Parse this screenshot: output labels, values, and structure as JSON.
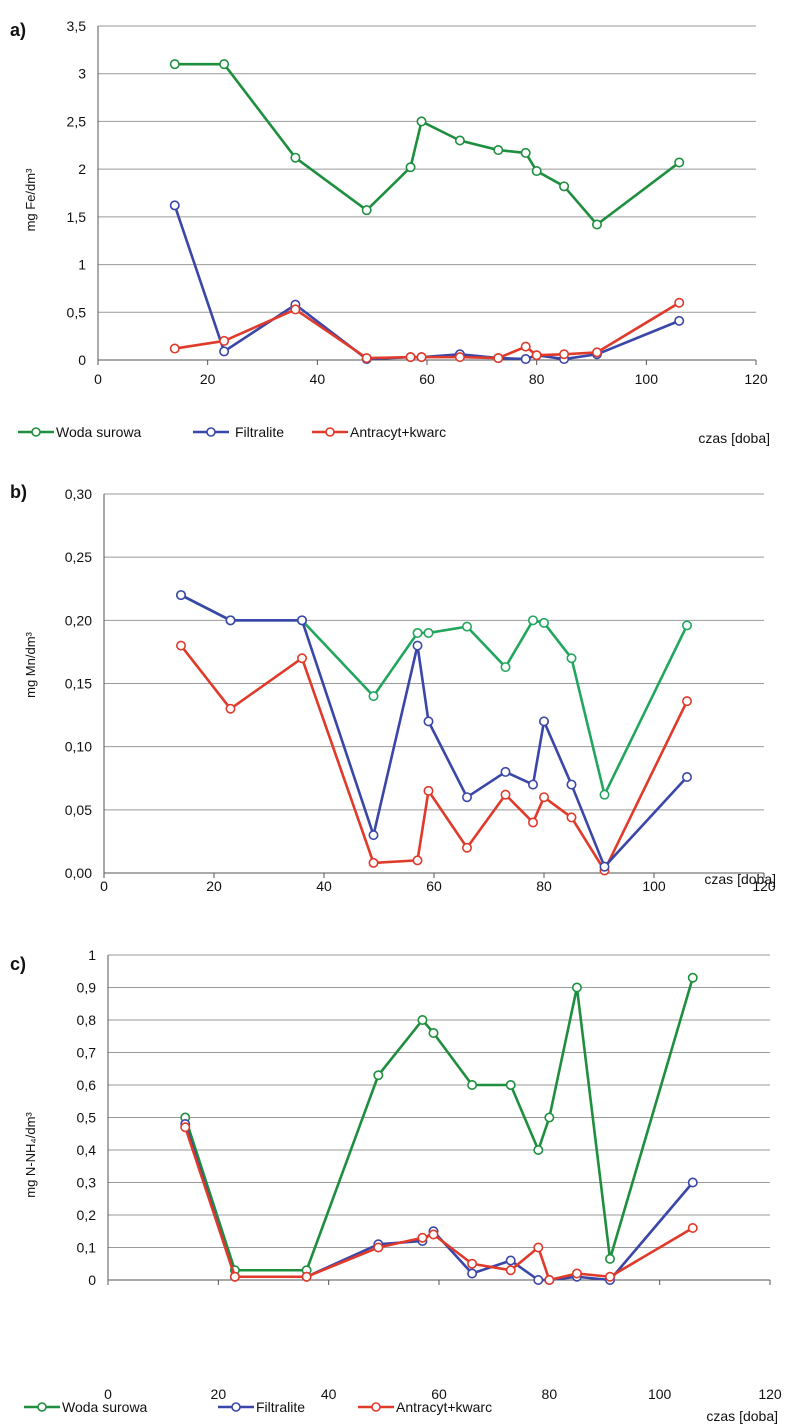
{
  "chart_data": [
    {
      "type": "line",
      "panel_label": "a)",
      "ylabel": "mg Fe/dm³",
      "xlabel": "czas [doba]",
      "xlim": [
        0,
        120
      ],
      "ylim": [
        0,
        3.5
      ],
      "xticks": [
        "0",
        "20",
        "40",
        "60",
        "80",
        "100",
        "120"
      ],
      "yticks": [
        "0",
        "0,5",
        "1",
        "1,5",
        "2",
        "2,5",
        "3",
        "3,5"
      ],
      "grid": true,
      "legend_position": "bottom",
      "series": [
        {
          "name": "Woda surowa",
          "color": "#1e8f3e",
          "x": [
            14,
            23,
            36,
            49,
            57,
            59,
            66,
            73,
            78,
            80,
            85,
            91,
            106
          ],
          "y": [
            3.1,
            3.1,
            2.12,
            1.57,
            2.02,
            2.5,
            2.3,
            2.2,
            2.17,
            1.98,
            1.82,
            1.42,
            2.07
          ]
        },
        {
          "name": "Filtralite",
          "color": "#3a46a8",
          "x": [
            14,
            23,
            36,
            49,
            57,
            59,
            66,
            73,
            78,
            80,
            85,
            91,
            106
          ],
          "y": [
            1.62,
            0.09,
            0.58,
            0.01,
            0.03,
            0.03,
            0.06,
            0.02,
            0.01,
            0.05,
            0.01,
            0.06,
            0.41
          ]
        },
        {
          "name": "Antracyt+kwarc",
          "color": "#e03a2a",
          "x": [
            14,
            23,
            36,
            49,
            57,
            59,
            66,
            73,
            78,
            80,
            85,
            91,
            106
          ],
          "y": [
            0.12,
            0.2,
            0.53,
            0.02,
            0.03,
            0.03,
            0.03,
            0.02,
            0.14,
            0.05,
            0.06,
            0.08,
            0.6
          ]
        }
      ]
    },
    {
      "type": "line",
      "panel_label": "b)",
      "ylabel": "mg Mn/dm³",
      "xlabel": "czas [doba]",
      "xlim": [
        0,
        120
      ],
      "ylim": [
        0,
        0.3
      ],
      "xticks": [
        "0",
        "20",
        "40",
        "60",
        "80",
        "100",
        "120"
      ],
      "yticks": [
        "0,00",
        "0,05",
        "0,10",
        "0,15",
        "0,20",
        "0,25",
        "0,30"
      ],
      "grid": true,
      "legend_position": "bottom",
      "series": [
        {
          "name": "Woda surowa",
          "color": "#22a65e",
          "x": [
            14,
            23,
            36,
            49,
            57,
            59,
            66,
            73,
            78,
            80,
            85,
            91,
            106
          ],
          "y": [
            0.22,
            0.2,
            0.2,
            0.14,
            0.19,
            0.19,
            0.195,
            0.163,
            0.2,
            0.198,
            0.17,
            0.062,
            0.196
          ]
        },
        {
          "name": "Filtralite",
          "color": "#e03a2a",
          "x": [
            14,
            23,
            36,
            49,
            57,
            59,
            66,
            73,
            78,
            80,
            85,
            91,
            106
          ],
          "y": [
            0.18,
            0.13,
            0.17,
            0.008,
            0.01,
            0.065,
            0.02,
            0.062,
            0.04,
            0.06,
            0.044,
            0.002,
            0.136
          ]
        },
        {
          "name": "Antracyt+kwarc",
          "color": "#3a46a8",
          "x": [
            14,
            23,
            36,
            49,
            57,
            59,
            66,
            73,
            78,
            80,
            85,
            91,
            106
          ],
          "y": [
            0.22,
            0.2,
            0.2,
            0.03,
            0.18,
            0.12,
            0.06,
            0.08,
            0.07,
            0.12,
            0.07,
            0.005,
            0.076
          ]
        }
      ]
    },
    {
      "type": "line",
      "panel_label": "c)",
      "ylabel": "mg N-NH₄/dm³",
      "xlabel": "czas [doba]",
      "xlim": [
        0,
        120
      ],
      "ylim": [
        0,
        1
      ],
      "xticks": [
        "0",
        "20",
        "40",
        "60",
        "80",
        "100",
        "120"
      ],
      "yticks": [
        "0",
        "0,1",
        "0,2",
        "0,3",
        "0,4",
        "0,5",
        "0,6",
        "0,7",
        "0,8",
        "0,9",
        "1"
      ],
      "grid": true,
      "legend_position": "bottom",
      "series": [
        {
          "name": "Woda surowa",
          "color": "#1e8f3e",
          "x": [
            14,
            23,
            36,
            49,
            57,
            59,
            66,
            73,
            78,
            80,
            85,
            91,
            106
          ],
          "y": [
            0.5,
            0.03,
            0.03,
            0.63,
            0.8,
            0.76,
            0.6,
            0.6,
            0.4,
            0.5,
            0.9,
            0.065,
            0.93
          ]
        },
        {
          "name": "Filtralite",
          "color": "#3a46a8",
          "x": [
            14,
            23,
            36,
            49,
            57,
            59,
            66,
            73,
            78,
            80,
            85,
            91,
            106
          ],
          "y": [
            0.48,
            0.01,
            0.01,
            0.11,
            0.12,
            0.15,
            0.02,
            0.06,
            0.0,
            0.0,
            0.01,
            0.0,
            0.3
          ]
        },
        {
          "name": "Antracyt+kwarc",
          "color": "#e03a2a",
          "x": [
            14,
            23,
            36,
            49,
            57,
            59,
            66,
            73,
            78,
            80,
            85,
            91,
            106
          ],
          "y": [
            0.47,
            0.01,
            0.01,
            0.1,
            0.13,
            0.14,
            0.05,
            0.03,
            0.1,
            0.0,
            0.02,
            0.01,
            0.16
          ]
        }
      ]
    }
  ]
}
